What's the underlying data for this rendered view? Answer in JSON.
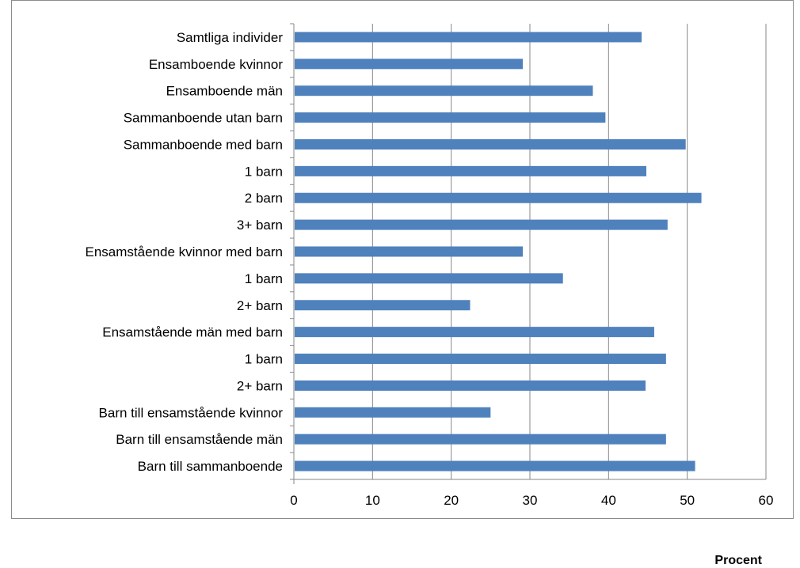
{
  "chart_data": {
    "type": "bar",
    "orientation": "horizontal",
    "title": "",
    "xlabel": "Procent",
    "ylabel": "",
    "xlim": [
      0,
      60
    ],
    "xticks": [
      0,
      10,
      20,
      30,
      40,
      50,
      60
    ],
    "grid": "vertical",
    "bar_color": "#4f81bd",
    "categories": [
      "Samtliga individer",
      "Ensamboende kvinnor",
      "Ensamboende män",
      "Sammanboende utan barn",
      "Sammanboende med barn",
      "1 barn",
      "2 barn",
      "3+ barn",
      "Ensamstående kvinnor med barn",
      "1 barn",
      "2+ barn",
      "Ensamstående män med barn",
      "1 barn",
      "2+ barn",
      "Barn till ensamstående kvinnor",
      "Barn till ensamstående män",
      "Barn till sammanboende"
    ],
    "values": [
      44.2,
      29.1,
      38.0,
      39.6,
      49.8,
      44.8,
      51.8,
      47.5,
      29.1,
      34.2,
      22.4,
      45.8,
      47.3,
      44.7,
      25.0,
      47.3,
      51.0
    ]
  }
}
